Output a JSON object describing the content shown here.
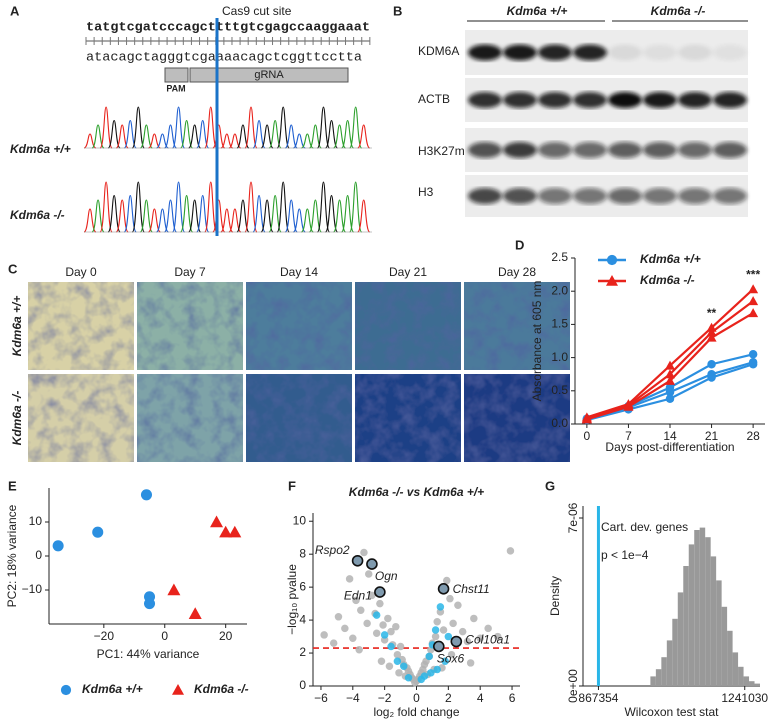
{
  "panel_labels": [
    "A",
    "B",
    "C",
    "D",
    "E",
    "F",
    "G"
  ],
  "panel_a": {
    "cut_site_label": "Cas9 cut site",
    "top_sequence": "tatgtcgatcccagcttttgtcgagccaaggaaat",
    "bottom_sequence": "atacagctagggtcgaaaacagctcggttcctta",
    "pam_label": "PAM",
    "grna_label": "gRNA",
    "row_labels": [
      "Kdm6a +/+",
      "Kdm6a -/-"
    ]
  },
  "panel_b": {
    "group_labels": [
      "Kdm6a +/+",
      "Kdm6a -/-"
    ],
    "row_labels": [
      "KDM6A",
      "ACTB",
      "H3K27me3",
      "H3"
    ]
  },
  "panel_c": {
    "day_labels": [
      "Day 0",
      "Day 7",
      "Day 14",
      "Day 21",
      "Day 28"
    ],
    "row_labels": [
      "Kdm6a +/+",
      "Kdm6a -/-"
    ]
  },
  "chart_data": [
    {
      "type": "line",
      "x_label": "Days post-differentiation",
      "y_label": "Absorbance at 605 nm",
      "x": [
        0,
        7,
        14,
        21,
        28
      ],
      "xlim": [
        -2,
        30
      ],
      "xticks": [
        0,
        7,
        14,
        21,
        28
      ],
      "ylim": [
        0,
        2.5
      ],
      "yticks": [
        {
          "value": 0,
          "label": "0.0"
        },
        {
          "value": 0.5,
          "label": "0.5"
        },
        {
          "value": 1,
          "label": "1.0"
        },
        {
          "value": 1.5,
          "label": "1.5"
        },
        {
          "value": 2,
          "label": "2.0"
        },
        {
          "value": 2.5,
          "label": "2.5"
        }
      ],
      "legend": "top-left",
      "series": [
        {
          "name": "Kdm6a +/+",
          "color": "#2b8fe0",
          "marker": "circle",
          "replicates": [
            [
              0.08,
              0.27,
              0.55,
              0.9,
              1.05
            ],
            [
              0.07,
              0.25,
              0.48,
              0.75,
              0.93
            ],
            [
              0.06,
              0.22,
              0.38,
              0.7,
              0.9
            ]
          ]
        },
        {
          "name": "Kdm6a -/-",
          "color": "#e8231c",
          "marker": "triangle",
          "replicates": [
            [
              0.1,
              0.3,
              0.88,
              1.45,
              2.03
            ],
            [
              0.08,
              0.28,
              0.75,
              1.38,
              1.85
            ],
            [
              0.07,
              0.26,
              0.65,
              1.3,
              1.67
            ]
          ]
        }
      ],
      "annotations": [
        {
          "text": "**",
          "x": 21
        },
        {
          "text": "***",
          "x": 28
        }
      ]
    },
    {
      "type": "scatter",
      "x_label": "PC1: 44% variance",
      "y_label": "PC2: 18% variance",
      "xlim": [
        -38,
        27
      ],
      "xticks": [
        {
          "value": -20,
          "label": "−20"
        },
        0,
        20
      ],
      "ylim": [
        -20,
        20
      ],
      "yticks": [
        {
          "value": -10,
          "label": "−10"
        },
        0,
        10
      ],
      "legend": "bottom",
      "series": [
        {
          "name": "Kdm6a +/+",
          "color": "#2b8fe0",
          "marker": "circle",
          "x": [
            -35,
            -22,
            -6,
            -5,
            -5
          ],
          "y": [
            3,
            7,
            18,
            -12,
            -14
          ]
        },
        {
          "name": "Kdm6a -/-",
          "color": "#e8231c",
          "marker": "triangle",
          "x": [
            3,
            10,
            17,
            20,
            23
          ],
          "y": [
            -10,
            -17,
            10,
            7,
            7
          ]
        }
      ]
    },
    {
      "type": "scatter",
      "title": "Kdm6a -/- vs Kdm6a +/+",
      "x_label": "log₂ fold change",
      "y_label": "−log₁₀ pvalue",
      "xlim": [
        -6.5,
        6.5
      ],
      "xticks": [
        {
          "value": -6,
          "label": "−6"
        },
        {
          "value": -4,
          "label": "−4"
        },
        {
          "value": -2,
          "label": "−2"
        },
        0,
        2,
        4,
        6
      ],
      "ylim": [
        0,
        10.5
      ],
      "yticks": [
        0,
        2,
        4,
        6,
        8,
        10
      ],
      "threshold": {
        "value": 2.3,
        "color": "#e8231c"
      },
      "series": [
        {
          "color": "#b3b3b3",
          "marker": "circle",
          "x": [
            -5.8,
            -5.2,
            -4.9,
            -4.5,
            -4.2,
            -4,
            -3.8,
            -3.5,
            -3.3,
            -3.1,
            -3,
            -2.8,
            -2.6,
            -2.5,
            -2.3,
            -2.1,
            -2,
            -1.8,
            -1.6,
            -1.5,
            -1.3,
            -1.2,
            -1,
            -0.9,
            -0.8,
            -0.6,
            -0.5,
            -0.4,
            -0.3,
            -0.2,
            -0.1,
            0,
            0.1,
            0.2,
            0.3,
            0.4,
            0.5,
            0.6,
            0.8,
            0.9,
            1,
            1.2,
            1.3,
            1.5,
            1.7,
            1.9,
            2.1,
            2.3,
            2.6,
            2.9,
            3.2,
            3.6,
            4,
            4.5,
            5.1,
            5.9,
            -1.1,
            -0.7,
            0.7,
            1.1,
            -2.2,
            2.2,
            -3.6,
            3.4,
            -1.7,
            1.6
          ],
          "y": [
            3.1,
            2.6,
            4.2,
            3.5,
            6.5,
            2.9,
            5.2,
            4.6,
            8.1,
            3.8,
            6.8,
            5.5,
            4.4,
            3.2,
            5,
            3.7,
            2.8,
            4.1,
            3.3,
            2.5,
            3.6,
            1.9,
            2.4,
            1.6,
            1.3,
            1.1,
            0.9,
            0.7,
            0.5,
            0.4,
            0.2,
            0.3,
            0.4,
            0.6,
            0.8,
            1,
            1.3,
            1.5,
            1.8,
            2.2,
            2.6,
            3,
            3.9,
            4.5,
            3.4,
            6.4,
            5.3,
            3.8,
            4.9,
            3.3,
            2.7,
            4.1,
            2.9,
            3.5,
            3,
            8.2,
            0.8,
            0.6,
            0.7,
            1,
            1.5,
            1.9,
            2.2,
            1.4,
            1.2,
            1.1
          ]
        },
        {
          "color": "#29b6e8",
          "marker": "circle",
          "x": [
            -2.5,
            -2,
            -1.6,
            -1.2,
            -0.8,
            0.5,
            0.8,
            1,
            1.2,
            1.5,
            1.8,
            2,
            0.3,
            1.3,
            0.9,
            -0.5
          ],
          "y": [
            4.3,
            3.1,
            2.4,
            1.5,
            1.2,
            0.6,
            1.8,
            2.5,
            3.4,
            4.8,
            1.5,
            3,
            0.4,
            1,
            0.8,
            0.5
          ]
        }
      ],
      "labeled_genes": {
        "names": [
          "Rspo2",
          "Ogn",
          "Edn1",
          "Chst11",
          "Col10a1",
          "Sox6"
        ],
        "x": [
          -3.7,
          -2.8,
          -2.3,
          1.7,
          2.5,
          1.4
        ],
        "y": [
          7.6,
          7.4,
          5.7,
          5.9,
          2.7,
          2.4
        ]
      }
    },
    {
      "type": "histogram",
      "x_label": "Wilcoxon test stat",
      "y_label": "Density",
      "xlim": [
        827900,
        1280000
      ],
      "xticks": [
        867354,
        1241030
      ],
      "ylim": [
        0,
        7.5e-06
      ],
      "yticks": [
        {
          "value": 0,
          "label": "0e+00"
        },
        {
          "value": 7e-06,
          "label": "7e-06"
        }
      ],
      "color": "#999999",
      "bins": [
        1000000,
        1014000,
        1028000,
        1042000,
        1056000,
        1070000,
        1084000,
        1098000,
        1112000,
        1126000,
        1140000,
        1154000,
        1168000,
        1182000,
        1196000,
        1210000,
        1224000,
        1238000,
        1252000,
        1266000,
        1280000
      ],
      "values": [
        4e-07,
        7e-07,
        1.2e-06,
        1.9e-06,
        2.8e-06,
        3.9e-06,
        5e-06,
        5.9e-06,
        6.5e-06,
        6.6e-06,
        6.2e-06,
        5.4e-06,
        4.4e-06,
        3.3e-06,
        2.3e-06,
        1.4e-06,
        8e-07,
        4e-07,
        2e-07,
        1e-07
      ],
      "marker_line": {
        "value": 867354,
        "color": "#29b6e8"
      },
      "annotations": [
        "Cart. dev. genes",
        "p < 1e−4"
      ]
    }
  ]
}
